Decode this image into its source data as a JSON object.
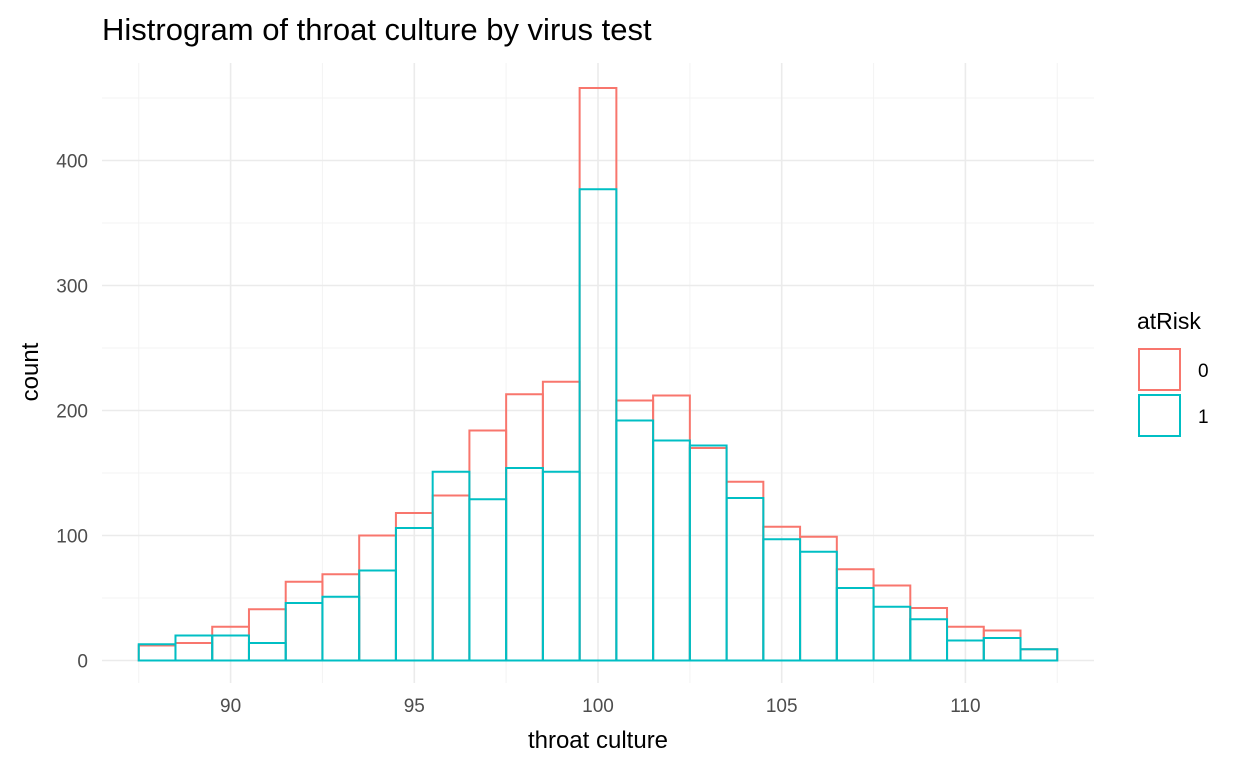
{
  "chart_data": {
    "type": "bar",
    "subtype": "histogram",
    "title": "Histrogram of throat culture by virus test",
    "xlabel": "throat culture",
    "ylabel": "count",
    "xlim": [
      86.5,
      113.5
    ],
    "ylim": [
      -18,
      478
    ],
    "x_ticks": [
      90,
      95,
      100,
      105,
      110
    ],
    "y_ticks": [
      0,
      100,
      200,
      300,
      400
    ],
    "x_tick_labels": [
      "90",
      "95",
      "100",
      "105",
      "110"
    ],
    "y_tick_labels": [
      "0",
      "100",
      "200",
      "300",
      "400"
    ],
    "grid": true,
    "bin_width": 1,
    "bin_centers": [
      88,
      89,
      90,
      91,
      92,
      93,
      94,
      95,
      96,
      97,
      98,
      99,
      100,
      101,
      102,
      103,
      104,
      105,
      106,
      107,
      108,
      109,
      110,
      111,
      112
    ],
    "series": [
      {
        "name": "0",
        "color": "#F8766D",
        "values": [
          12,
          14,
          27,
          41,
          63,
          69,
          100,
          118,
          132,
          184,
          213,
          223,
          458,
          208,
          212,
          170,
          143,
          107,
          99,
          73,
          60,
          42,
          27,
          24,
          9
        ]
      },
      {
        "name": "1",
        "color": "#00BFC4",
        "values": [
          13,
          20,
          20,
          14,
          46,
          51,
          72,
          106,
          151,
          129,
          154,
          151,
          377,
          192,
          176,
          172,
          130,
          97,
          87,
          58,
          43,
          33,
          16,
          18,
          9
        ]
      }
    ],
    "legend": {
      "title": "atRisk",
      "position": "right",
      "entries": [
        "0",
        "1"
      ]
    }
  }
}
